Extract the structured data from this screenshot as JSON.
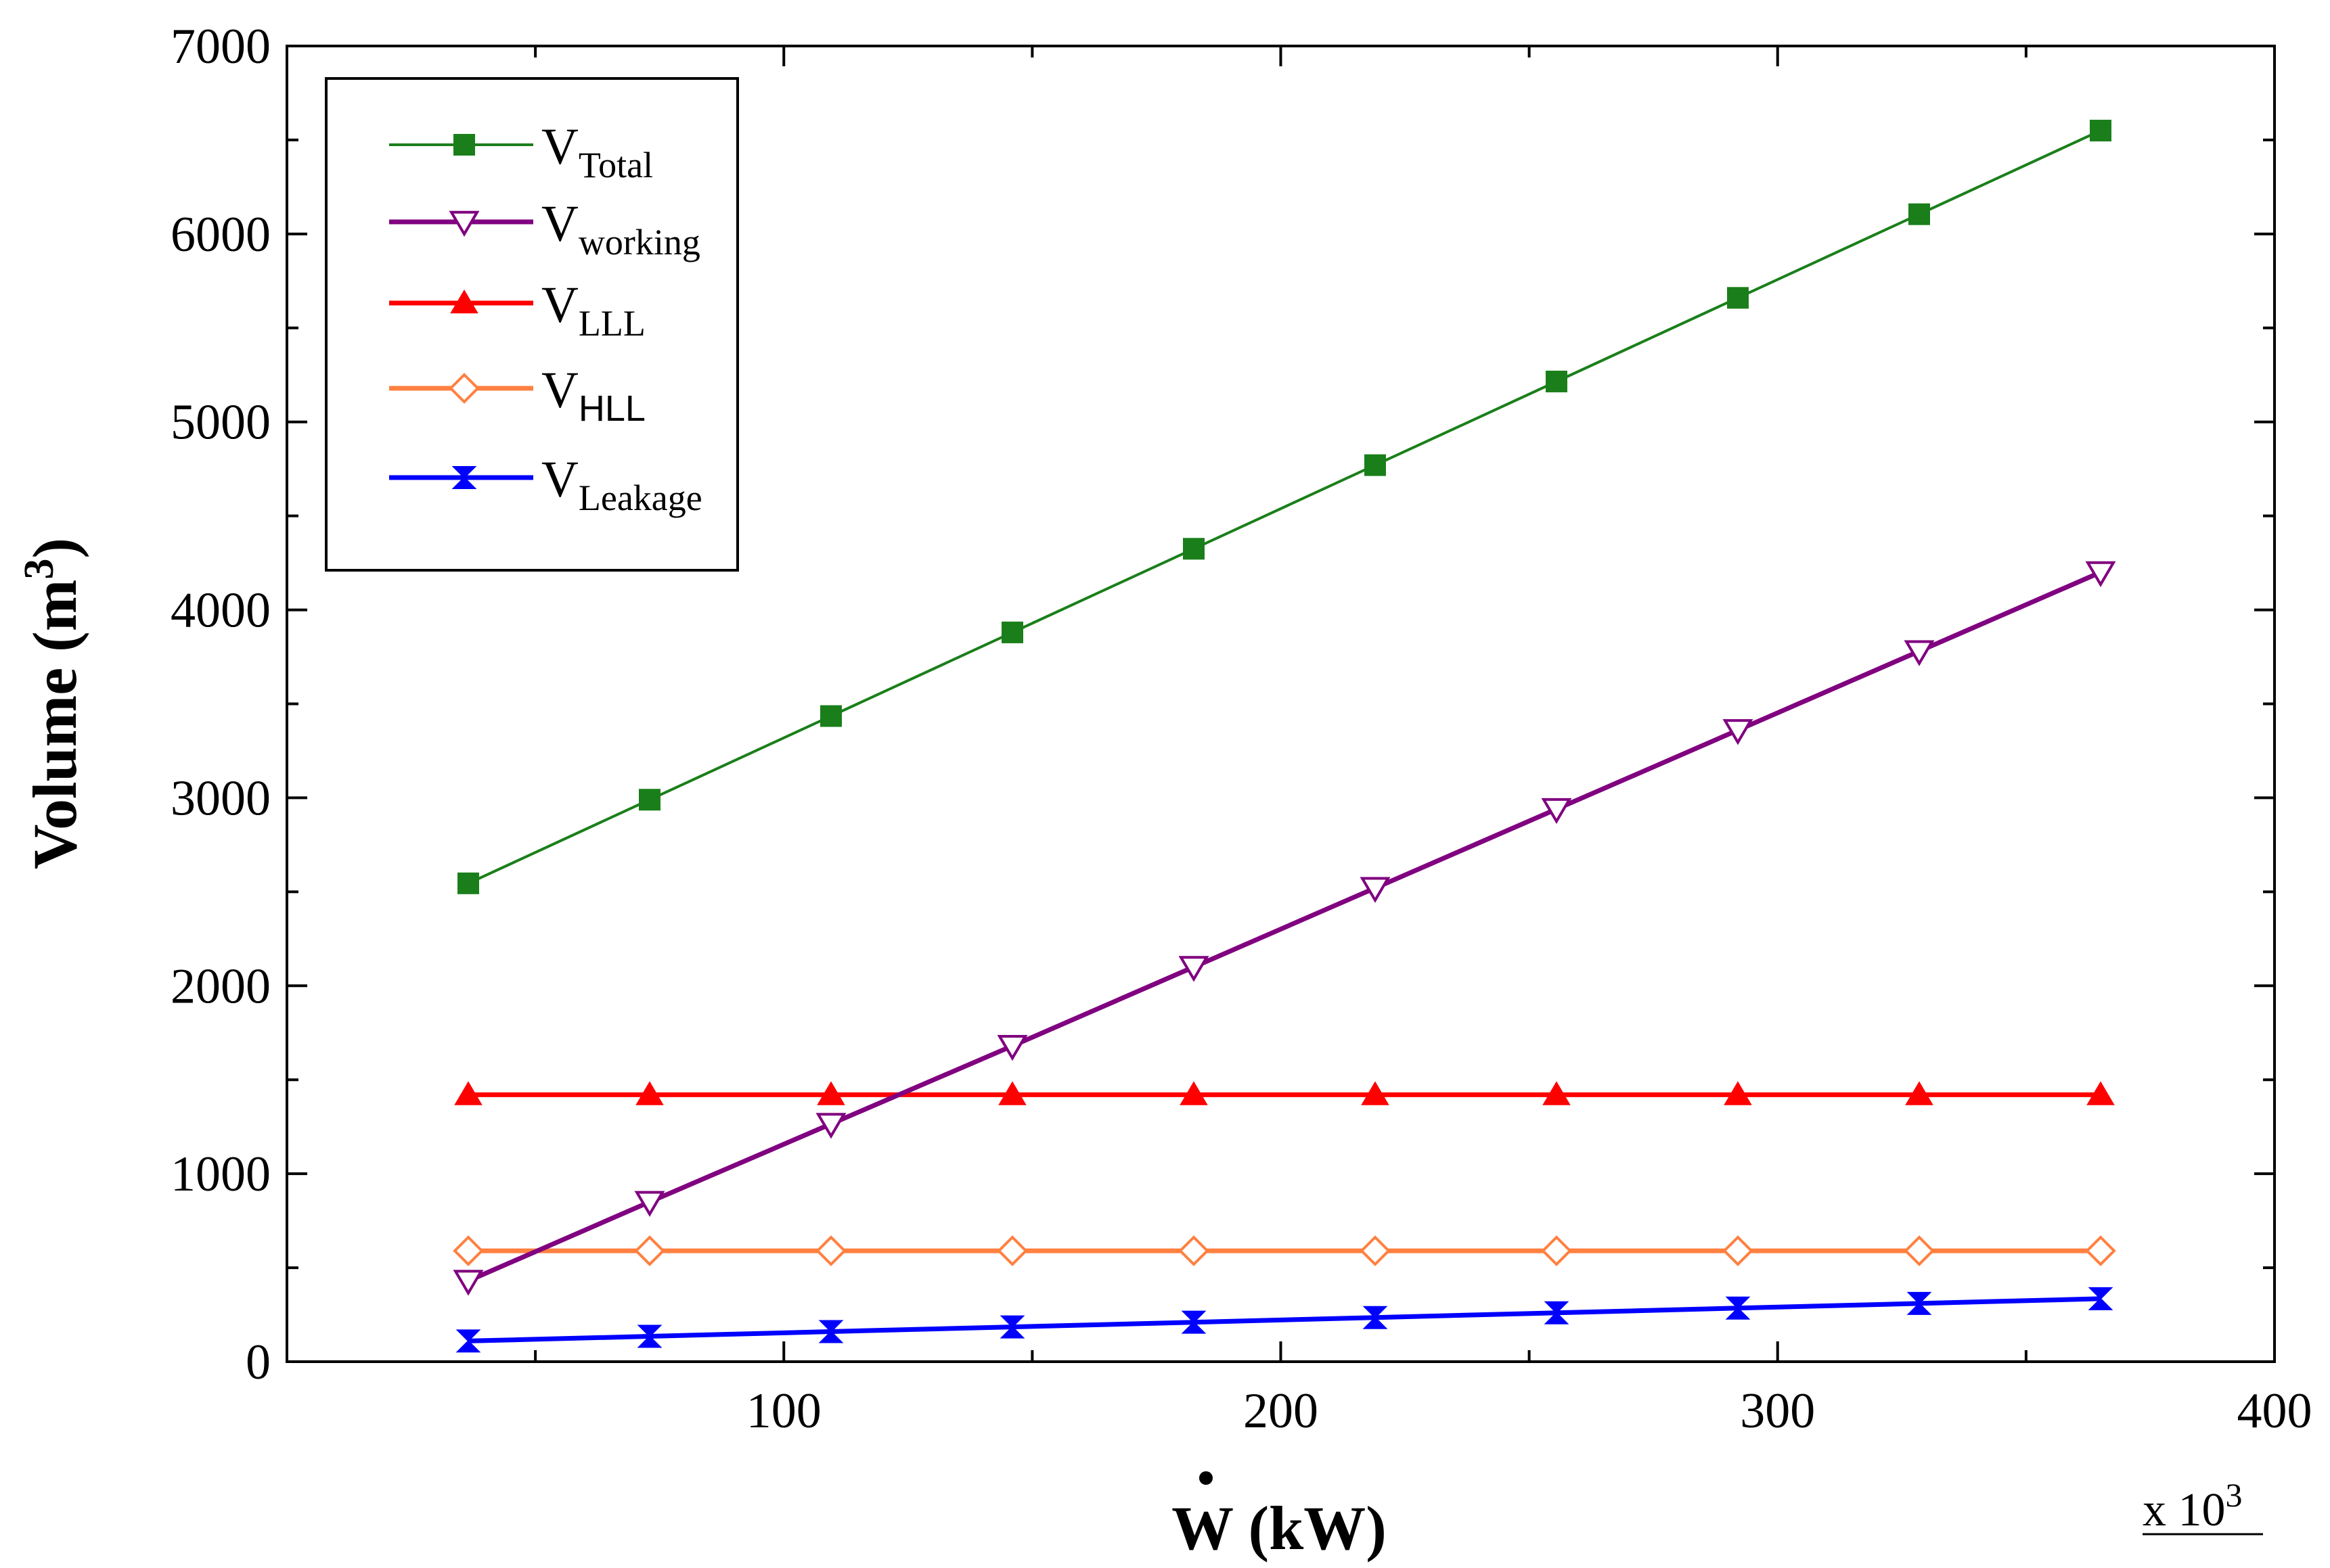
{
  "chart_data": {
    "type": "line",
    "xlabel": "Ẇ (kW)",
    "xlabel_main": "W",
    "xlabel_unit": " (kW)",
    "ylabel": "Volume (m³)",
    "ylabel_main": "Volume (m",
    "ylabel_sup": "3",
    "ylabel_close": ")",
    "x_multiplier": "x 10",
    "x_multiplier_exp": "3",
    "xlim": [
      0,
      400
    ],
    "ylim": [
      0,
      7000
    ],
    "xticks": [
      100,
      200,
      300,
      400
    ],
    "yticks": [
      0,
      1000,
      2000,
      3000,
      4000,
      5000,
      6000,
      7000
    ],
    "grid": false,
    "legend_position": "top-left",
    "x": [
      36.5,
      73,
      109.5,
      146,
      182.5,
      219,
      255.5,
      292,
      328.5,
      365
    ],
    "series": [
      {
        "name": "VTotal",
        "label_main": "V",
        "label_sub": "Total",
        "sub_font": "serif",
        "color": "#1a7f1a",
        "marker": "square-filled",
        "values": [
          2545,
          2990,
          3435,
          3880,
          4325,
          4770,
          5215,
          5660,
          6105,
          6550
        ]
      },
      {
        "name": "Vworking",
        "label_main": "V",
        "label_sub": "working",
        "sub_font": "serif",
        "color": "#800080",
        "marker": "triangle-down-open",
        "values": [
          430,
          850,
          1265,
          1680,
          2100,
          2520,
          2940,
          3360,
          3780,
          4200
        ]
      },
      {
        "name": "VLLL",
        "label_main": "V",
        "label_sub": "LLL",
        "sub_font": "serif",
        "color": "#ff0000",
        "marker": "triangle-up-filled",
        "values": [
          1420,
          1420,
          1420,
          1420,
          1420,
          1420,
          1420,
          1420,
          1420,
          1420
        ]
      },
      {
        "name": "VHLL",
        "label_main": "V",
        "label_sub": "HLL",
        "sub_font": "sans",
        "color": "#ff8040",
        "marker": "diamond-open",
        "values": [
          590,
          590,
          590,
          590,
          590,
          590,
          590,
          590,
          590,
          590
        ]
      },
      {
        "name": "VLeakage",
        "label_main": "V",
        "label_sub": "Leakage",
        "sub_font": "serif",
        "color": "#0000ff",
        "marker": "bowtie",
        "values": [
          110,
          135,
          160,
          185,
          210,
          235,
          260,
          285,
          310,
          335
        ]
      }
    ]
  }
}
